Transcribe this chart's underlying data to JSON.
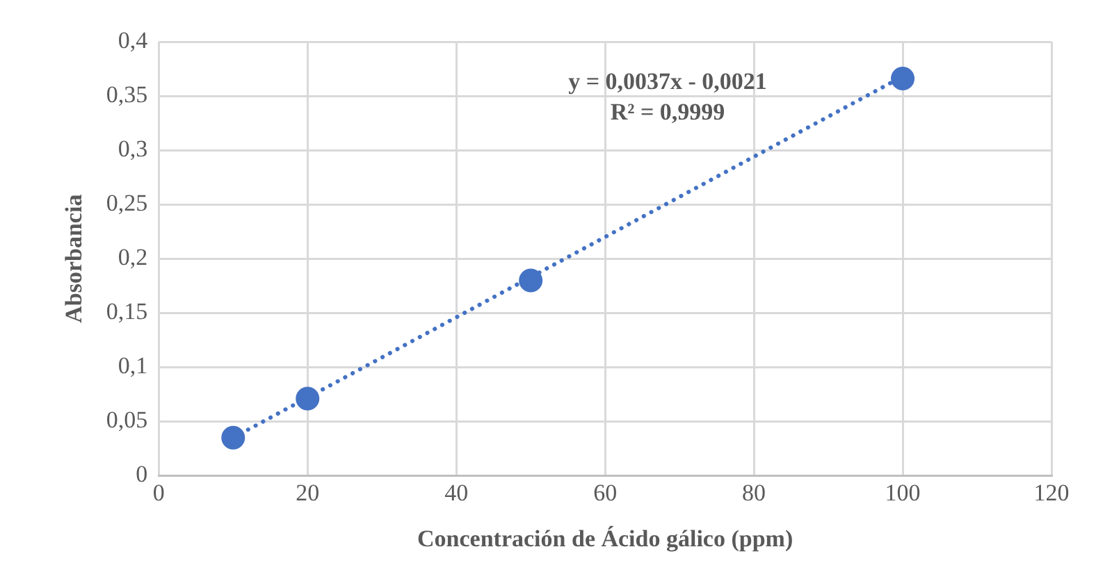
{
  "chart_data": {
    "type": "scatter",
    "xlabel": "Concentración de Ácido gálico (ppm)",
    "ylabel": "Absorbancia",
    "x": [
      10,
      20,
      50,
      100
    ],
    "series": [
      {
        "color": "#4472c4",
        "marker": "circle",
        "values": [
          0.035,
          0.071,
          0.18,
          0.366
        ]
      },
      {
        "type": "line",
        "color": "#4472c4",
        "marker": "none",
        "line_style": "dotted",
        "x": [
          10,
          100
        ],
        "values": [
          0.035,
          0.368
        ]
      }
    ],
    "annotations": [
      "y = 0,0037x - 0,0021",
      "R² = 0,9999"
    ],
    "xlim": [
      0,
      120
    ],
    "xticks": [
      0,
      20,
      40,
      60,
      80,
      100,
      120
    ],
    "ylim": [
      0,
      0.4
    ],
    "yticks": [
      0,
      {
        "value": 0.05,
        "label": "0,05"
      },
      {
        "value": 0.1,
        "label": "0,1"
      },
      {
        "value": 0.15,
        "label": "0,15"
      },
      {
        "value": 0.2,
        "label": "0,2"
      },
      {
        "value": 0.25,
        "label": "0,25"
      },
      {
        "value": 0.3,
        "label": "0,3"
      },
      {
        "value": 0.35,
        "label": "0,35"
      },
      {
        "value": 0.4,
        "label": "0,4"
      }
    ],
    "grid": true,
    "legend": false
  }
}
